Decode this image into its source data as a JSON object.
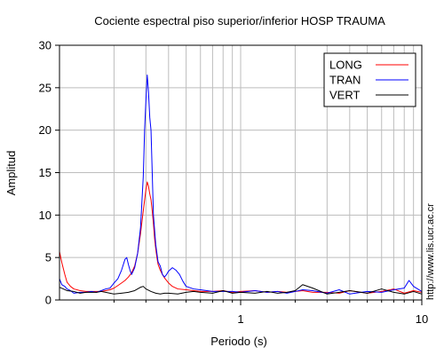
{
  "chart_data": {
    "type": "line",
    "title": "Cociente espectral piso superior/inferior  HOSP TRAUMA",
    "xlabel": "Periodo (s)",
    "ylabel": "Amplitud",
    "xscale": "log",
    "xlim": [
      0.1,
      10
    ],
    "ylim": [
      0,
      30
    ],
    "xticks": [
      {
        "value": 1,
        "label": "1"
      },
      {
        "value": 10,
        "label": "10"
      }
    ],
    "yticks": [
      0,
      5,
      10,
      15,
      20,
      25,
      30
    ],
    "grid": true,
    "legend_position": "top-right",
    "series": [
      {
        "name": "LONG",
        "color": "#ff0000",
        "x": [
          0.1,
          0.103,
          0.107,
          0.11,
          0.115,
          0.12,
          0.13,
          0.14,
          0.15,
          0.16,
          0.17,
          0.18,
          0.19,
          0.2,
          0.21,
          0.22,
          0.23,
          0.24,
          0.25,
          0.26,
          0.27,
          0.28,
          0.29,
          0.3,
          0.305,
          0.31,
          0.315,
          0.32,
          0.325,
          0.33,
          0.335,
          0.34,
          0.345,
          0.35,
          0.36,
          0.37,
          0.38,
          0.4,
          0.42,
          0.45,
          0.5,
          0.55,
          0.6,
          0.7,
          0.8,
          0.9,
          1,
          1.2,
          1.4,
          1.6,
          1.8,
          2,
          2.2,
          2.5,
          3,
          3.5,
          4,
          5,
          6,
          7,
          8,
          9,
          10
        ],
        "y": [
          5.7,
          4.4,
          3.0,
          2.1,
          1.6,
          1.3,
          1.1,
          1.0,
          1.0,
          1.0,
          1.0,
          1.1,
          1.2,
          1.4,
          1.7,
          2.0,
          2.3,
          2.7,
          3.2,
          4.0,
          5.5,
          7.8,
          10.5,
          13.0,
          13.9,
          13.4,
          12.5,
          11.8,
          10.5,
          9.0,
          7.2,
          6.0,
          5.0,
          4.2,
          3.5,
          3.0,
          2.6,
          2.0,
          1.6,
          1.3,
          1.2,
          1.1,
          1.0,
          1.0,
          1.1,
          0.9,
          1.0,
          1.1,
          0.9,
          1.0,
          0.9,
          1.0,
          1.1,
          0.9,
          0.9,
          0.8,
          1.1,
          0.8,
          1.0,
          1.3,
          0.8,
          1.1,
          0.9
        ]
      },
      {
        "name": "TRAN",
        "color": "#0000ff",
        "x": [
          0.1,
          0.103,
          0.107,
          0.11,
          0.115,
          0.12,
          0.13,
          0.14,
          0.15,
          0.16,
          0.17,
          0.18,
          0.19,
          0.2,
          0.21,
          0.22,
          0.23,
          0.235,
          0.24,
          0.245,
          0.25,
          0.26,
          0.27,
          0.28,
          0.29,
          0.295,
          0.3,
          0.305,
          0.31,
          0.315,
          0.32,
          0.325,
          0.33,
          0.34,
          0.35,
          0.36,
          0.37,
          0.38,
          0.39,
          0.4,
          0.42,
          0.44,
          0.46,
          0.48,
          0.5,
          0.55,
          0.6,
          0.7,
          0.8,
          0.9,
          1,
          1.2,
          1.4,
          1.6,
          1.8,
          2,
          2.2,
          2.5,
          3,
          3.5,
          4,
          5,
          6,
          7,
          8,
          8.5,
          9,
          10
        ],
        "y": [
          2.5,
          1.8,
          1.6,
          1.3,
          1.1,
          0.8,
          0.9,
          0.9,
          1.0,
          0.9,
          1.1,
          1.3,
          1.4,
          2.0,
          2.5,
          3.5,
          4.8,
          5.0,
          4.2,
          3.5,
          3.0,
          3.8,
          5.5,
          8.5,
          14.5,
          20.0,
          23.5,
          26.5,
          24.5,
          21.5,
          20.0,
          15.0,
          10.0,
          6.5,
          4.5,
          4.0,
          3.0,
          2.7,
          3.0,
          3.4,
          3.8,
          3.5,
          3.0,
          2.2,
          1.6,
          1.3,
          1.2,
          1.0,
          1.0,
          1.0,
          0.9,
          1.1,
          0.9,
          1.0,
          0.8,
          1.0,
          1.2,
          1.1,
          0.8,
          1.2,
          0.7,
          1.0,
          0.9,
          1.2,
          1.4,
          2.3,
          1.6,
          1.0
        ]
      },
      {
        "name": "VERT",
        "color": "#000000",
        "x": [
          0.1,
          0.105,
          0.11,
          0.12,
          0.13,
          0.14,
          0.15,
          0.16,
          0.17,
          0.18,
          0.19,
          0.2,
          0.22,
          0.24,
          0.26,
          0.28,
          0.29,
          0.3,
          0.32,
          0.34,
          0.36,
          0.38,
          0.4,
          0.45,
          0.5,
          0.55,
          0.6,
          0.7,
          0.8,
          0.9,
          1,
          1.2,
          1.4,
          1.6,
          1.8,
          2,
          2.2,
          2.5,
          3,
          3.5,
          4,
          5,
          6,
          7,
          8,
          9,
          10
        ],
        "y": [
          1.5,
          1.3,
          1.1,
          1.0,
          0.8,
          0.9,
          0.9,
          0.9,
          1.0,
          0.9,
          0.8,
          0.7,
          0.8,
          0.9,
          1.1,
          1.5,
          1.6,
          1.3,
          1.0,
          0.8,
          0.7,
          0.8,
          0.8,
          0.7,
          0.9,
          1.0,
          0.9,
          0.8,
          1.1,
          0.8,
          0.9,
          0.8,
          1.0,
          0.8,
          0.9,
          1.1,
          1.8,
          1.4,
          0.7,
          0.9,
          1.1,
          0.8,
          1.3,
          0.9,
          0.7,
          1.0,
          0.7
        ]
      }
    ]
  },
  "watermark": "http://www.lis.ucr.ac.cr"
}
